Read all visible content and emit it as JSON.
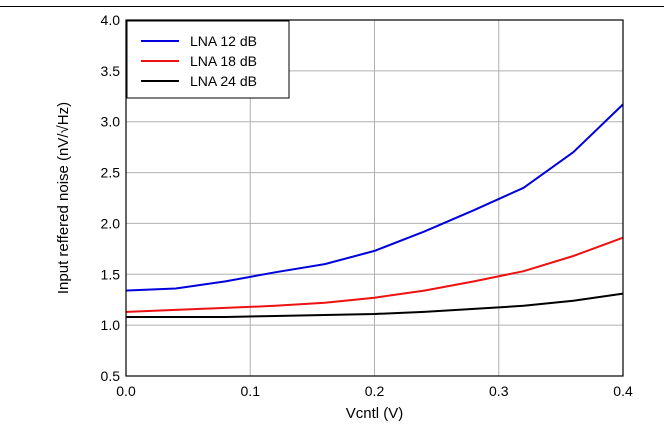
{
  "colors": {
    "lna12": "#0000dd",
    "lna18": "#ee1111",
    "lna24": "#000000",
    "grid": "#b0b0b0"
  },
  "chart_data": {
    "type": "line",
    "title": "",
    "xlabel": "Vcntl (V)",
    "ylabel": "Input reffered noise (nV/√Hz)",
    "xlim": [
      0.0,
      0.4
    ],
    "ylim": [
      0.5,
      4.0
    ],
    "xticks": [
      "0.0",
      "0.1",
      "0.2",
      "0.3",
      "0.4"
    ],
    "yticks": [
      "0.5",
      "1.0",
      "1.5",
      "2.0",
      "2.5",
      "3.0",
      "3.5",
      "4.0"
    ],
    "grid": true,
    "legend_position": "top-left",
    "x": [
      0.0,
      0.04,
      0.08,
      0.12,
      0.16,
      0.2,
      0.24,
      0.28,
      0.32,
      0.36,
      0.4
    ],
    "series": [
      {
        "name": "LNA 12 dB",
        "color": "#0000dd",
        "values": [
          1.34,
          1.36,
          1.43,
          1.52,
          1.6,
          1.73,
          1.92,
          2.13,
          2.35,
          2.7,
          3.17
        ]
      },
      {
        "name": "LNA 18 dB",
        "color": "#ee1111",
        "values": [
          1.13,
          1.15,
          1.17,
          1.19,
          1.22,
          1.27,
          1.34,
          1.43,
          1.53,
          1.68,
          1.86
        ]
      },
      {
        "name": "LNA 24 dB",
        "color": "#000000",
        "values": [
          1.08,
          1.08,
          1.08,
          1.09,
          1.1,
          1.11,
          1.13,
          1.16,
          1.19,
          1.24,
          1.31
        ]
      }
    ]
  }
}
